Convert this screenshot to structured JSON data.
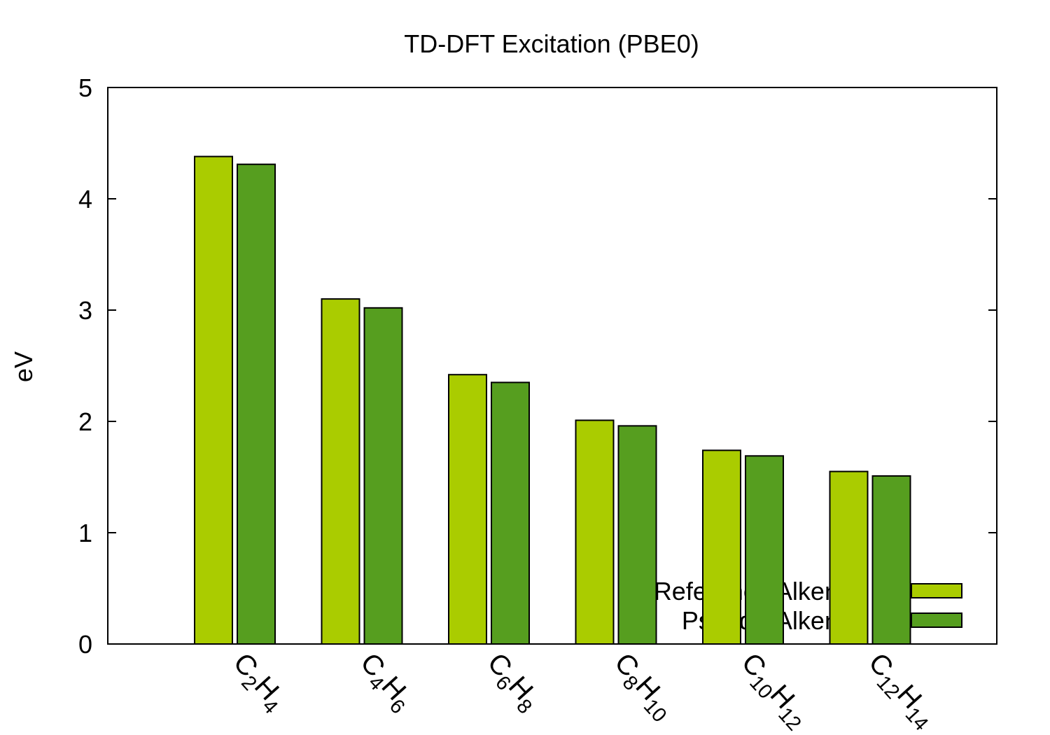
{
  "chart_data": {
    "type": "bar",
    "title": "TD-DFT Excitation (PBE0)",
    "xlabel": "",
    "ylabel": "eV",
    "ylim": [
      0,
      5
    ],
    "yticks": [
      "0",
      "1",
      "2",
      "3",
      "4",
      "5"
    ],
    "grid": false,
    "legend_position": "bottom-right",
    "categories": [
      {
        "label": "C2H4",
        "parts": [
          {
            "t": "C"
          },
          {
            "t": "2",
            "sub": true
          },
          {
            "t": "H"
          },
          {
            "t": "4",
            "sub": true
          }
        ]
      },
      {
        "label": "C4H6",
        "parts": [
          {
            "t": "C"
          },
          {
            "t": "4",
            "sub": true
          },
          {
            "t": "H"
          },
          {
            "t": "6",
            "sub": true
          }
        ]
      },
      {
        "label": "C6H8",
        "parts": [
          {
            "t": "C"
          },
          {
            "t": "6",
            "sub": true
          },
          {
            "t": "H"
          },
          {
            "t": "8",
            "sub": true
          }
        ]
      },
      {
        "label": "C8H10",
        "parts": [
          {
            "t": "C"
          },
          {
            "t": "8",
            "sub": true
          },
          {
            "t": "H"
          },
          {
            "t": "10",
            "sub": true
          }
        ]
      },
      {
        "label": "C10H12",
        "parts": [
          {
            "t": "C"
          },
          {
            "t": "10",
            "sub": true
          },
          {
            "t": "H"
          },
          {
            "t": "12",
            "sub": true
          }
        ]
      },
      {
        "label": "C12H14",
        "parts": [
          {
            "t": "C"
          },
          {
            "t": "12",
            "sub": true
          },
          {
            "t": "H"
          },
          {
            "t": "14",
            "sub": true
          }
        ]
      }
    ],
    "series": [
      {
        "name": "Reference Alkenes",
        "color": "#aacc00",
        "values": [
          4.38,
          3.1,
          2.42,
          2.01,
          1.74,
          1.55
        ]
      },
      {
        "name": "Pseudo-Alkenes",
        "color": "#569e1f",
        "values": [
          4.31,
          3.02,
          2.35,
          1.96,
          1.69,
          1.51
        ]
      }
    ]
  }
}
